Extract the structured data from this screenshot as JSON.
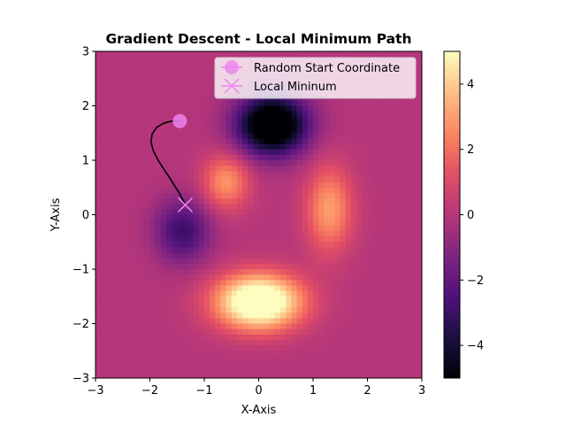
{
  "chart_data": {
    "type": "heatmap",
    "title": "Gradient Descent - Local Minimum Path",
    "xlabel": "X-Axis",
    "ylabel": "Y-Axis",
    "xlim": [
      -3,
      3
    ],
    "ylim": [
      -3,
      3
    ],
    "xticks": [
      "−3",
      "−2",
      "−1",
      "0",
      "1",
      "2",
      "3"
    ],
    "yticks": [
      "−3",
      "−2",
      "−1",
      "0",
      "1",
      "2",
      "3"
    ],
    "colormap": "magma",
    "colorbar": {
      "vmin": -5,
      "vmax": 5,
      "ticks": [
        "−4",
        "−2",
        "0",
        "2",
        "4"
      ]
    },
    "grid": false,
    "legend_position": "top-right",
    "legend": [
      {
        "label": "Random Start Coordinate",
        "marker": "circle",
        "color": "#ee82ee"
      },
      {
        "label": "Local Mininum",
        "marker": "x",
        "color": "#ee82ee"
      }
    ],
    "start_point": {
      "x": -1.45,
      "y": 1.72
    },
    "end_point": {
      "x": -1.35,
      "y": 0.18
    },
    "path": [
      [
        -1.45,
        1.72
      ],
      [
        -1.6,
        1.72
      ],
      [
        -1.75,
        1.68
      ],
      [
        -1.88,
        1.6
      ],
      [
        -1.96,
        1.48
      ],
      [
        -1.98,
        1.34
      ],
      [
        -1.94,
        1.18
      ],
      [
        -1.86,
        1.02
      ],
      [
        -1.76,
        0.86
      ],
      [
        -1.65,
        0.7
      ],
      [
        -1.55,
        0.54
      ],
      [
        -1.46,
        0.4
      ],
      [
        -1.39,
        0.27
      ],
      [
        -1.35,
        0.18
      ]
    ],
    "features": [
      {
        "type": "min",
        "x": 0.25,
        "y": 1.65,
        "amp": -7.0,
        "sx": 0.45,
        "sy": 0.38
      },
      {
        "type": "min",
        "x": -1.4,
        "y": -0.3,
        "amp": -3.0,
        "sx": 0.35,
        "sy": 0.4
      },
      {
        "type": "max",
        "x": -0.6,
        "y": 0.6,
        "amp": 2.8,
        "sx": 0.3,
        "sy": 0.35
      },
      {
        "type": "max",
        "x": 1.3,
        "y": 0.1,
        "amp": 3.0,
        "sx": 0.3,
        "sy": 0.55
      },
      {
        "type": "max",
        "x": 0.0,
        "y": -1.6,
        "amp": 7.0,
        "sx": 0.55,
        "sy": 0.35
      }
    ]
  }
}
